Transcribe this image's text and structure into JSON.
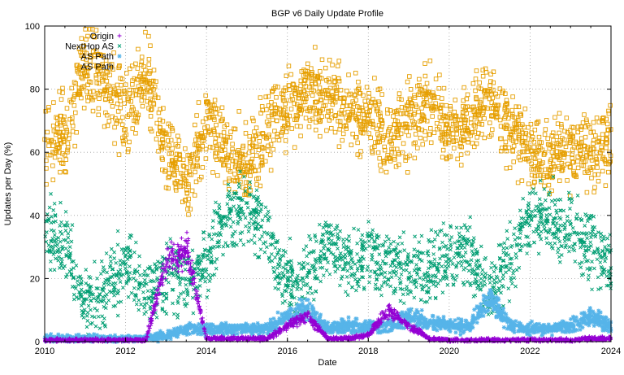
{
  "chart_data": {
    "type": "scatter",
    "title": "BGP v6 Daily Update Profile",
    "xlabel": "Date",
    "ylabel": "Updates per Day (%)",
    "xlim": [
      2010,
      2024
    ],
    "ylim": [
      0,
      100
    ],
    "xticks": [
      "2010",
      "2012",
      "2014",
      "2016",
      "2018",
      "2020",
      "2022",
      "2024"
    ],
    "yticks": [
      "0",
      "20",
      "40",
      "60",
      "80",
      "100"
    ],
    "grid": true,
    "legend_position": "top-left",
    "x": [
      2010,
      2010.5,
      2011,
      2011.5,
      2012,
      2012.5,
      2013,
      2013.5,
      2014,
      2014.5,
      2015,
      2015.5,
      2016,
      2016.5,
      2017,
      2017.5,
      2018,
      2018.5,
      2019,
      2019.5,
      2020,
      2020.5,
      2021,
      2021.5,
      2022,
      2022.5,
      2023,
      2023.5,
      2024
    ],
    "series": [
      {
        "name": "Origin",
        "color": "#9400d3",
        "marker": "plus",
        "values": [
          0.5,
          0.5,
          0.5,
          0.5,
          0.5,
          0.5,
          25,
          30,
          1,
          1,
          1,
          1,
          5,
          8,
          1,
          1,
          2,
          10,
          5,
          1,
          0.5,
          0.5,
          0.5,
          0.5,
          0.5,
          0.5,
          0.5,
          1,
          1
        ]
      },
      {
        "name": "NextHop AS",
        "color": "#009e73",
        "marker": "cross",
        "values": [
          35,
          32,
          12,
          15,
          25,
          15,
          20,
          20,
          25,
          40,
          42,
          35,
          20,
          20,
          30,
          25,
          28,
          25,
          22,
          22,
          28,
          28,
          15,
          25,
          40,
          38,
          35,
          30,
          25
        ]
      },
      {
        "name": "AS Path",
        "color": "#56b4e9",
        "marker": "star",
        "values": [
          1,
          1,
          1,
          1,
          1,
          1,
          2,
          4,
          4,
          4,
          4,
          4,
          8,
          10,
          4,
          5,
          5,
          5,
          8,
          6,
          5,
          5,
          14,
          5,
          4,
          4,
          5,
          8,
          5
        ]
      },
      {
        "name": "AS Path",
        "color": "#e69f00",
        "marker": "square",
        "values": [
          65,
          65,
          88,
          82,
          70,
          85,
          60,
          50,
          70,
          60,
          55,
          68,
          75,
          78,
          78,
          72,
          70,
          65,
          70,
          75,
          68,
          70,
          78,
          68,
          60,
          58,
          62,
          58,
          65
        ]
      }
    ]
  }
}
